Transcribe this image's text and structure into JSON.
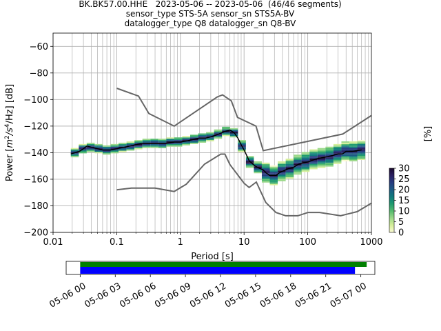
{
  "header": {
    "title_lines": [
      "BK.BK57.00.HHE   2023-05-06 -- 2023-05-06  (46/46 segments)",
      "sensor_type STS-5A sensor_sn STS5A-BV",
      "datalogger_type Q8 datalogger_sn Q8-BV"
    ]
  },
  "chart_data": [
    {
      "type": "heatmap",
      "xlabel": "Period [s]",
      "ylabel": "Power [m²/s⁴/Hz] [dB]",
      "ylabel_parts": {
        "before": "Power [",
        "m": "m",
        "two": "2",
        "s": "/s",
        "four": "4",
        "hz": "/Hz] [dB]"
      },
      "x_scale": "log",
      "xlim": [
        0.01,
        1000
      ],
      "ylim": [
        -200,
        -50
      ],
      "x_ticks": [
        0.01,
        0.1,
        1,
        10,
        100,
        1000
      ],
      "x_tick_labels": [
        "0.01",
        "0.1",
        "1",
        "10",
        "100",
        "1000"
      ],
      "y_ticks": [
        -200,
        -180,
        -160,
        -140,
        -120,
        -100,
        -80,
        -60
      ],
      "y_tick_labels": [
        "−200",
        "−180",
        "−160",
        "−140",
        "−120",
        "−100",
        "−80",
        "−60"
      ],
      "grid": true,
      "colorbar": {
        "label": "[%]",
        "range": [
          0,
          30
        ],
        "ticks": [
          0,
          5,
          10,
          15,
          20,
          25,
          30
        ],
        "tick_labels": [
          "0",
          "5",
          "10",
          "15",
          "20",
          "25",
          "30"
        ],
        "colors": [
          "#fbfbd3",
          "#d6ef9b",
          "#9cd98a",
          "#56bb6f",
          "#209b6f",
          "#0f7a7c",
          "#1d5a84",
          "#273c80",
          "#2a1f60",
          "#1b0a2e"
        ]
      },
      "series": [
        {
          "name": "",
          "role": "mean",
          "color": "#000000",
          "points": [
            [
              0.019,
              -141
            ],
            [
              0.022,
              -140
            ],
            [
              0.026,
              -139
            ],
            [
              0.03,
              -137
            ],
            [
              0.034,
              -135
            ],
            [
              0.04,
              -136
            ],
            [
              0.05,
              -137
            ],
            [
              0.06,
              -138
            ],
            [
              0.08,
              -138
            ],
            [
              0.1,
              -137
            ],
            [
              0.13,
              -136
            ],
            [
              0.16,
              -135
            ],
            [
              0.2,
              -134
            ],
            [
              0.25,
              -133
            ],
            [
              0.3,
              -133
            ],
            [
              0.4,
              -133
            ],
            [
              0.5,
              -133
            ],
            [
              0.6,
              -133
            ],
            [
              0.8,
              -132
            ],
            [
              1,
              -132
            ],
            [
              1.3,
              -131
            ],
            [
              1.6,
              -130
            ],
            [
              2,
              -129
            ],
            [
              2.5,
              -129
            ],
            [
              3,
              -128
            ],
            [
              3.5,
              -127
            ],
            [
              4,
              -126
            ],
            [
              5,
              -124
            ],
            [
              6,
              -123
            ],
            [
              7,
              -125
            ],
            [
              8,
              -129
            ],
            [
              9,
              -134
            ],
            [
              10,
              -138
            ],
            [
              11,
              -142
            ],
            [
              12,
              -146
            ],
            [
              14,
              -149
            ],
            [
              16,
              -151
            ],
            [
              18,
              -152
            ],
            [
              20,
              -153
            ],
            [
              22,
              -155
            ],
            [
              25,
              -157
            ],
            [
              28,
              -157
            ],
            [
              32,
              -157
            ],
            [
              36,
              -155
            ],
            [
              40,
              -154
            ],
            [
              50,
              -152
            ],
            [
              60,
              -151
            ],
            [
              70,
              -149
            ],
            [
              80,
              -148
            ],
            [
              100,
              -147
            ],
            [
              130,
              -145
            ],
            [
              160,
              -144
            ],
            [
              200,
              -143
            ],
            [
              250,
              -142
            ],
            [
              300,
              -141
            ],
            [
              350,
              -141
            ],
            [
              400,
              -139
            ],
            [
              500,
              -139
            ],
            [
              700,
              -138
            ]
          ]
        },
        {
          "name": "",
          "role": "new_high_noise_model",
          "color": "#666666",
          "points": [
            [
              0.1,
              -91.5
            ],
            [
              0.22,
              -97.4
            ],
            [
              0.32,
              -110.5
            ],
            [
              0.8,
              -120
            ],
            [
              3.8,
              -98
            ],
            [
              4.6,
              -96.5
            ],
            [
              6.3,
              -101
            ],
            [
              7.9,
              -113.5
            ],
            [
              15.4,
              -120
            ],
            [
              20,
              -138.5
            ],
            [
              354.8,
              -126
            ],
            [
              1000,
              -112
            ]
          ]
        },
        {
          "name": "",
          "role": "new_low_noise_model",
          "color": "#666666",
          "points": [
            [
              0.1,
              -168
            ],
            [
              0.17,
              -166.7
            ],
            [
              0.4,
              -166.7
            ],
            [
              0.8,
              -169.2
            ],
            [
              1.24,
              -163.7
            ],
            [
              2.4,
              -148.6
            ],
            [
              4.3,
              -141.1
            ],
            [
              5,
              -141.1
            ],
            [
              6,
              -149
            ],
            [
              10,
              -163
            ],
            [
              12,
              -166.2
            ],
            [
              15.6,
              -162.1
            ],
            [
              21.9,
              -177.5
            ],
            [
              31.6,
              -185
            ],
            [
              45,
              -187.5
            ],
            [
              70,
              -187.5
            ],
            [
              101,
              -185
            ],
            [
              154,
              -185
            ],
            [
              328,
              -187.5
            ],
            [
              600,
              -184.4
            ],
            [
              1000,
              -178
            ]
          ]
        }
      ]
    },
    {
      "type": "timeline",
      "x_tick_labels": [
        "05-06 00",
        "05-06 03",
        "05-06 06",
        "05-06 09",
        "05-06 12",
        "05-06 15",
        "05-06 18",
        "05-06 21",
        "05-07 00"
      ],
      "x_ticks_hours": [
        0,
        3,
        6,
        9,
        12,
        15,
        18,
        21,
        24
      ],
      "xlim_hours": [
        -1.2,
        25.2
      ],
      "bars": [
        {
          "name": "",
          "role": "data_available",
          "color": "#008000",
          "start_hours": 0,
          "end_hours": 24.5
        },
        {
          "name": "",
          "role": "psd_segments_used",
          "color": "#0000ff",
          "start_hours": 0,
          "end_hours": 23.5
        }
      ]
    }
  ]
}
